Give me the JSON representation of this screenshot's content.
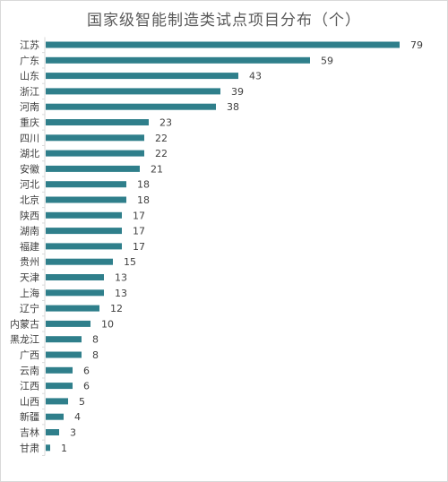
{
  "chart_data": {
    "type": "bar",
    "orientation": "horizontal",
    "title": "国家级智能制造类试点项目分布（个）",
    "categories": [
      "江苏",
      "广东",
      "山东",
      "浙江",
      "河南",
      "重庆",
      "四川",
      "湖北",
      "安徽",
      "河北",
      "北京",
      "陕西",
      "湖南",
      "福建",
      "贵州",
      "天津",
      "上海",
      "辽宁",
      "内蒙古",
      "黑龙江",
      "广西",
      "云南",
      "江西",
      "山西",
      "新疆",
      "吉林",
      "甘肃"
    ],
    "values": [
      79,
      59,
      43,
      39,
      38,
      23,
      22,
      22,
      21,
      18,
      18,
      17,
      17,
      17,
      15,
      13,
      13,
      12,
      10,
      8,
      8,
      6,
      6,
      5,
      4,
      3,
      1
    ],
    "xlim": [
      0,
      80
    ],
    "grid": false,
    "legend": "none",
    "bar_color": "#2f7f8b",
    "data_labels": true
  }
}
